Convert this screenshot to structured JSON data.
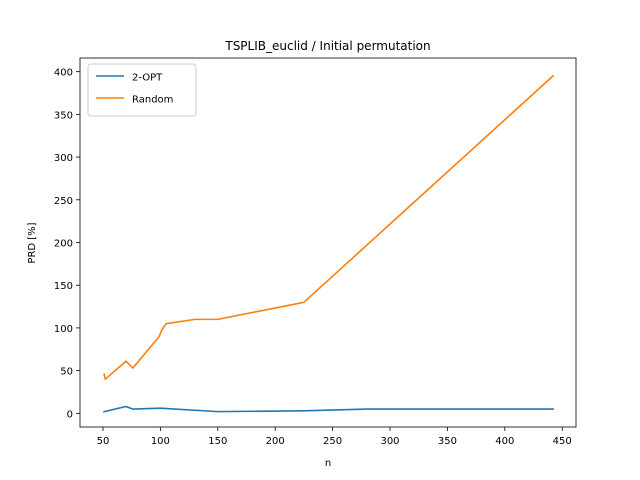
{
  "chart_data": {
    "type": "line",
    "title": "TSPLIB_euclid / Initial permutation",
    "xlabel": "n",
    "ylabel": "PRD [%]",
    "xlim": [
      30,
      462
    ],
    "ylim": [
      -16,
      416
    ],
    "xticks": [
      50,
      100,
      150,
      200,
      250,
      300,
      350,
      400,
      450
    ],
    "yticks": [
      0,
      50,
      100,
      150,
      200,
      250,
      300,
      350,
      400
    ],
    "grid": false,
    "legend_position": "top-left",
    "series": [
      {
        "name": "2-OPT",
        "color": "#1f77b4",
        "x": [
          51,
          70,
          76,
          100,
          150,
          225,
          280,
          442
        ],
        "y": [
          2,
          8,
          5,
          6,
          2,
          3,
          5,
          5
        ]
      },
      {
        "name": "Random",
        "color": "#ff7f0e",
        "x": [
          51,
          52,
          70,
          76,
          99,
          101,
          105,
          130,
          150,
          225,
          442
        ],
        "y": [
          46,
          40,
          61,
          53,
          90,
          97,
          105,
          110,
          110,
          130,
          395
        ]
      }
    ]
  }
}
